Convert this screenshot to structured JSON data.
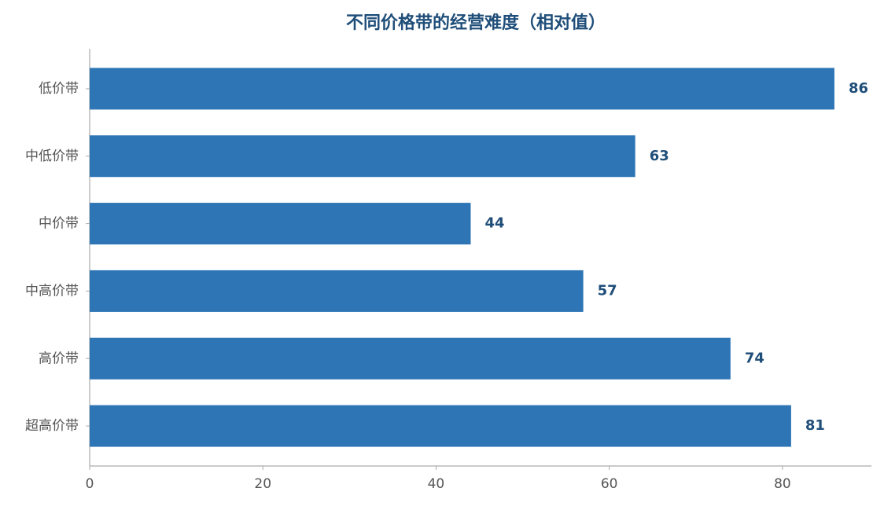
{
  "chart_data": {
    "type": "bar",
    "orientation": "horizontal",
    "title": "不同价格带的经营难度（相对值）",
    "categories": [
      "低价带",
      "中低价带",
      "中价带",
      "中高价带",
      "高价带",
      "超高价带"
    ],
    "values": [
      86,
      63,
      44,
      57,
      74,
      81
    ],
    "color": "#2e75b6",
    "xlim": [
      0,
      90
    ],
    "xticks": [
      0,
      20,
      40,
      60,
      80
    ],
    "grid": false
  }
}
